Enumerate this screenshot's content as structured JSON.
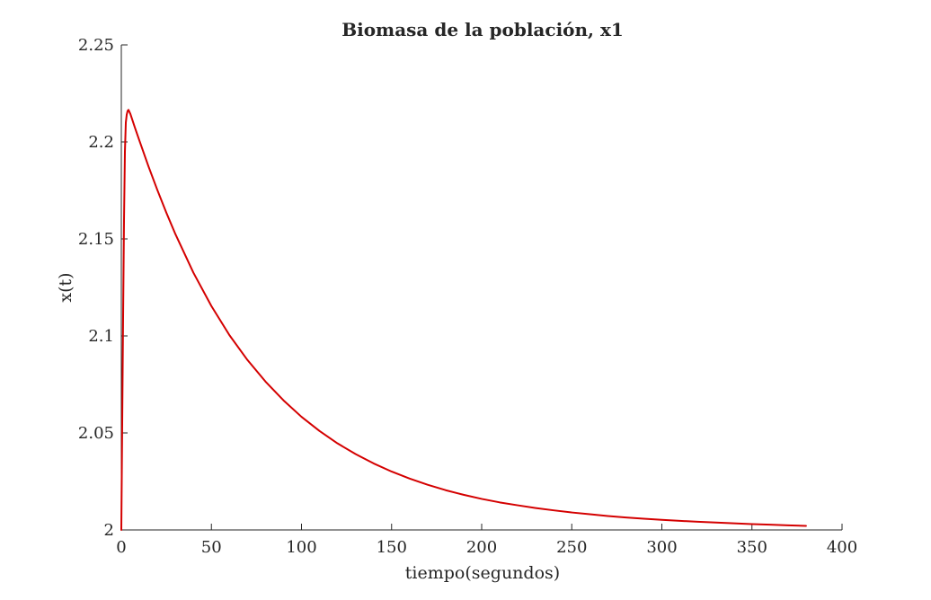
{
  "chart_data": {
    "type": "line",
    "title": "Biomasa de la población, x1",
    "xlabel": "tiempo(segundos)",
    "ylabel": "x(t)",
    "xlim": [
      0,
      400
    ],
    "ylim": [
      2,
      2.25
    ],
    "xticks": [
      0,
      50,
      100,
      150,
      200,
      250,
      300,
      350,
      400
    ],
    "xtick_labels": [
      "0",
      "50",
      "100",
      "150",
      "200",
      "250",
      "300",
      "350",
      "400"
    ],
    "yticks": [
      2,
      2.05,
      2.1,
      2.15,
      2.2,
      2.25
    ],
    "ytick_labels": [
      "2",
      "2.05",
      "2.1",
      "2.15",
      "2.2",
      "2.25"
    ],
    "grid": false,
    "series": [
      {
        "color": "#d40000",
        "x": [
          0,
          0.5,
          1,
          1.5,
          2,
          2.5,
          3,
          3.5,
          4,
          5,
          7.5,
          10,
          15,
          20,
          25,
          30,
          40,
          50,
          60,
          70,
          80,
          90,
          100,
          110,
          120,
          130,
          140,
          150,
          160,
          170,
          180,
          190,
          200,
          210,
          220,
          230,
          240,
          250,
          260,
          270,
          280,
          290,
          300,
          310,
          320,
          330,
          340,
          350,
          360,
          370,
          380
        ],
        "y": [
          2.0,
          2.055,
          2.11,
          2.16,
          2.195,
          2.21,
          2.214,
          2.216,
          2.2165,
          2.2145,
          2.2075,
          2.2008,
          2.1876,
          2.1752,
          2.1635,
          2.1525,
          2.1326,
          2.1154,
          2.1004,
          2.0876,
          2.0765,
          2.0668,
          2.0583,
          2.051,
          2.0446,
          2.0391,
          2.0343,
          2.0301,
          2.0265,
          2.0233,
          2.0205,
          2.0181,
          2.016,
          2.0142,
          2.0127,
          2.0113,
          2.0101,
          2.009,
          2.0081,
          2.0072,
          2.0064,
          2.0058,
          2.0052,
          2.0047,
          2.0042,
          2.0038,
          2.0034,
          2.003,
          2.0027,
          2.0024,
          2.0021
        ]
      }
    ]
  }
}
